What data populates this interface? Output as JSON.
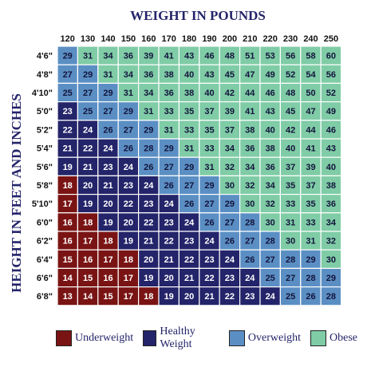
{
  "chart_data": {
    "type": "heatmap",
    "title": "WEIGHT IN POUNDS",
    "xlabel": "WEIGHT IN POUNDS",
    "ylabel": "HEIGHT IN FEET AND INCHES",
    "x_categories": [
      "120",
      "130",
      "140",
      "150",
      "160",
      "170",
      "180",
      "190",
      "200",
      "210",
      "220",
      "230",
      "240",
      "250"
    ],
    "y_categories": [
      "4'6\"",
      "4'8\"",
      "4'10\"",
      "5'0\"",
      "5'2\"",
      "5'4\"",
      "5'6\"",
      "5'8\"",
      "5'10\"",
      "6'0\"",
      "6'2\"",
      "6'4\"",
      "6'6\"",
      "6'8\""
    ],
    "values": [
      [
        29,
        31,
        34,
        36,
        39,
        41,
        43,
        46,
        48,
        51,
        53,
        56,
        58,
        60
      ],
      [
        27,
        29,
        31,
        34,
        36,
        38,
        40,
        43,
        45,
        47,
        49,
        52,
        54,
        56
      ],
      [
        25,
        27,
        29,
        31,
        34,
        36,
        38,
        40,
        42,
        44,
        46,
        48,
        50,
        52
      ],
      [
        23,
        25,
        27,
        29,
        31,
        33,
        35,
        37,
        39,
        41,
        43,
        45,
        47,
        49
      ],
      [
        22,
        24,
        26,
        27,
        29,
        31,
        33,
        35,
        37,
        38,
        40,
        42,
        44,
        46
      ],
      [
        21,
        22,
        24,
        26,
        28,
        29,
        31,
        33,
        34,
        36,
        38,
        40,
        41,
        43
      ],
      [
        19,
        21,
        23,
        24,
        26,
        27,
        29,
        31,
        32,
        34,
        36,
        37,
        39,
        40
      ],
      [
        18,
        20,
        21,
        23,
        24,
        26,
        27,
        29,
        30,
        32,
        34,
        35,
        37,
        38
      ],
      [
        17,
        19,
        20,
        22,
        23,
        24,
        26,
        27,
        29,
        30,
        32,
        33,
        35,
        36
      ],
      [
        16,
        18,
        19,
        20,
        22,
        23,
        24,
        26,
        27,
        28,
        30,
        31,
        33,
        34
      ],
      [
        16,
        17,
        18,
        19,
        21,
        22,
        23,
        24,
        26,
        27,
        28,
        30,
        31,
        32
      ],
      [
        15,
        16,
        17,
        18,
        20,
        21,
        22,
        23,
        24,
        26,
        27,
        28,
        29,
        30
      ],
      [
        14,
        15,
        16,
        17,
        19,
        20,
        21,
        22,
        23,
        24,
        25,
        27,
        28,
        29
      ],
      [
        13,
        14,
        15,
        17,
        18,
        19,
        20,
        21,
        22,
        23,
        24,
        25,
        26,
        28
      ]
    ],
    "categories": [
      {
        "label": "Underweight",
        "color": "#7a1414",
        "range": [
          0,
          18
        ]
      },
      {
        "label": "Healthy Weight",
        "color": "#24246a",
        "range": [
          19,
          24
        ]
      },
      {
        "label": "Overweight",
        "color": "#5b8fc4",
        "range": [
          25,
          29
        ]
      },
      {
        "label": "Obese",
        "color": "#7fcca6",
        "range": [
          30,
          99
        ]
      }
    ],
    "text_colors": {
      "dark_bg": "#ffffff",
      "light_bg": "#14143c"
    },
    "grid_color": "#ffffff",
    "legend_position": "bottom"
  }
}
